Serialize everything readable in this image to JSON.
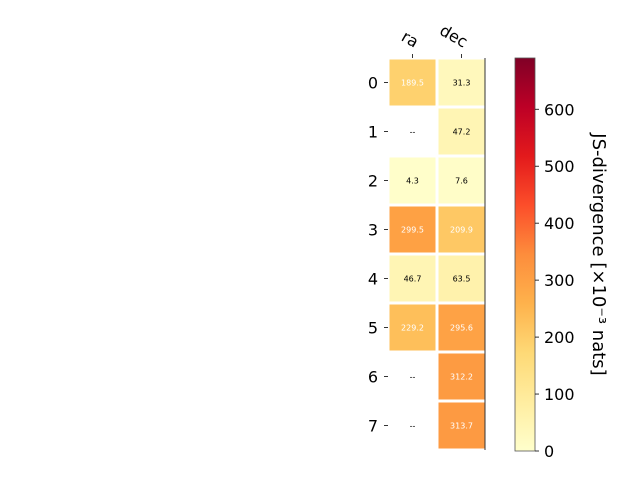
{
  "chart_data": {
    "type": "heatmap",
    "columns": [
      "ra",
      "dec"
    ],
    "rows": [
      "0",
      "1",
      "2",
      "3",
      "4",
      "5",
      "6",
      "7"
    ],
    "values": [
      [
        189.5,
        31.3
      ],
      [
        null,
        47.2
      ],
      [
        4.3,
        7.6
      ],
      [
        299.5,
        209.9
      ],
      [
        46.7,
        63.5
      ],
      [
        229.2,
        295.6
      ],
      [
        null,
        312.2
      ],
      [
        null,
        313.7
      ]
    ],
    "cell_labels": [
      [
        "189.5",
        "31.3"
      ],
      [
        "--",
        "47.2"
      ],
      [
        "4.3",
        "7.6"
      ],
      [
        "299.5",
        "209.9"
      ],
      [
        "46.7",
        "63.5"
      ],
      [
        "229.2",
        "295.6"
      ],
      [
        "--",
        "312.2"
      ],
      [
        "--",
        "313.7"
      ]
    ],
    "missing_label": "--",
    "colormap": "YlOrRd",
    "colorbar": {
      "label": "JS-divergence [×10⁻³ nats]",
      "range": [
        0,
        690
      ],
      "ticks": [
        0,
        100,
        200,
        300,
        400,
        500,
        600
      ],
      "tick_labels": [
        "0",
        "100",
        "200",
        "300",
        "400",
        "500",
        "600"
      ]
    },
    "colors": {
      "colormap_stops": [
        "#ffffcc",
        "#ffeda0",
        "#fed976",
        "#feb24c",
        "#fd8d3c",
        "#fc4e2a",
        "#e31a1c",
        "#bd0026",
        "#800026"
      ]
    }
  }
}
